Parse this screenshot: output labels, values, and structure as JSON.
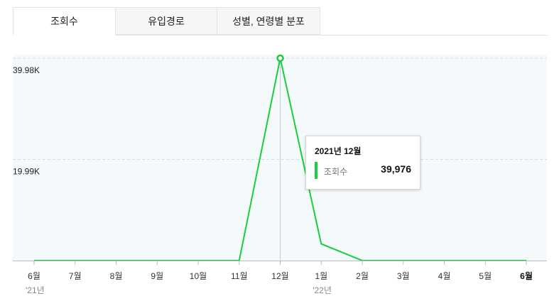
{
  "tabs": [
    {
      "label": "조회수",
      "active": true
    },
    {
      "label": "유입경로",
      "active": false
    },
    {
      "label": "성별, 연령별 분포",
      "active": false
    }
  ],
  "colors": {
    "line": "#19ce3c",
    "plot_bg": "#f4f9fb",
    "grid": "#dcdcdc"
  },
  "chart_data": {
    "type": "line",
    "categories": [
      "6월",
      "7월",
      "8월",
      "9월",
      "10월",
      "11월",
      "12월",
      "1월",
      "2월",
      "3월",
      "4월",
      "5월",
      "6월"
    ],
    "year_labels": [
      {
        "index": 0,
        "label": "'21년"
      },
      {
        "index": 7,
        "label": "'22년"
      }
    ],
    "series": [
      {
        "name": "조회수",
        "values": [
          0,
          0,
          0,
          0,
          0,
          0,
          39976,
          3300,
          0,
          0,
          0,
          0,
          0
        ]
      }
    ],
    "yticks": [
      {
        "value": 19988,
        "label": "19.99K"
      },
      {
        "value": 39976,
        "label": "39.98K"
      }
    ],
    "ylim": [
      0,
      39976
    ],
    "grid": true,
    "highlight_index": 6,
    "bold_index": 12,
    "tooltip": {
      "title": "2021년 12월",
      "series": "조회수",
      "value": "39,976"
    }
  }
}
